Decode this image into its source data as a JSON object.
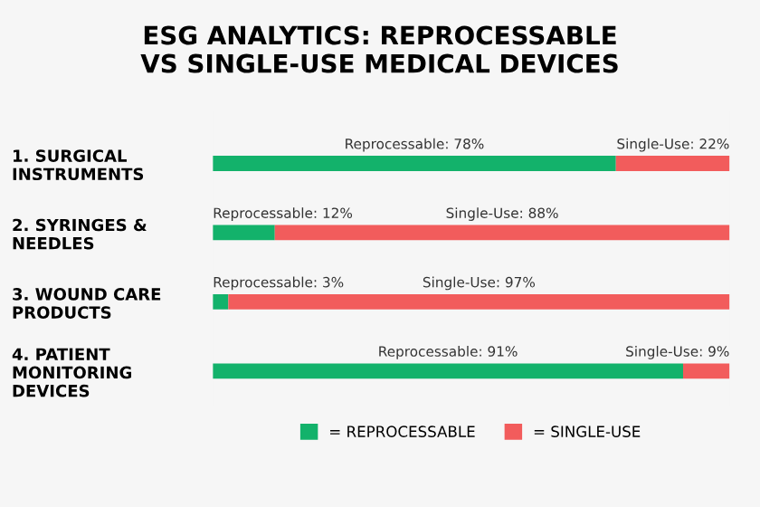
{
  "chart_data": {
    "type": "bar",
    "orientation": "horizontal",
    "stacked": true,
    "title": "ESG ANALYTICS: REPROCESSABLE\nVS SINGLE-USE MEDICAL DEVICES",
    "categories": [
      "1. SURGICAL\nINSTRUMENTS",
      "2. SYRINGES &\nNEEDLES",
      "3. WOUND CARE\nPRODUCTS",
      "4. PATIENT\nMONITORING\nDEVICES"
    ],
    "xlim": [
      0,
      100
    ],
    "series": [
      {
        "name": "= REPROCESSABLE",
        "color": "#13b26b",
        "values": [
          78,
          12,
          3,
          91
        ],
        "value_labels": [
          "Reprocessable: 78%",
          "Reprocessable: 12%",
          "Reprocessable: 3%",
          "Reprocessable: 91%"
        ]
      },
      {
        "name": "= SINGLE-USE",
        "color": "#f25c5c",
        "values": [
          22,
          88,
          97,
          9
        ],
        "value_labels": [
          "Single-Use: 22%",
          "Single-Use: 88%",
          "Single-Use: 97%",
          "Single-Use: 9%"
        ]
      }
    ],
    "tick_labels": "y",
    "grid": false,
    "legend": "bottom"
  }
}
